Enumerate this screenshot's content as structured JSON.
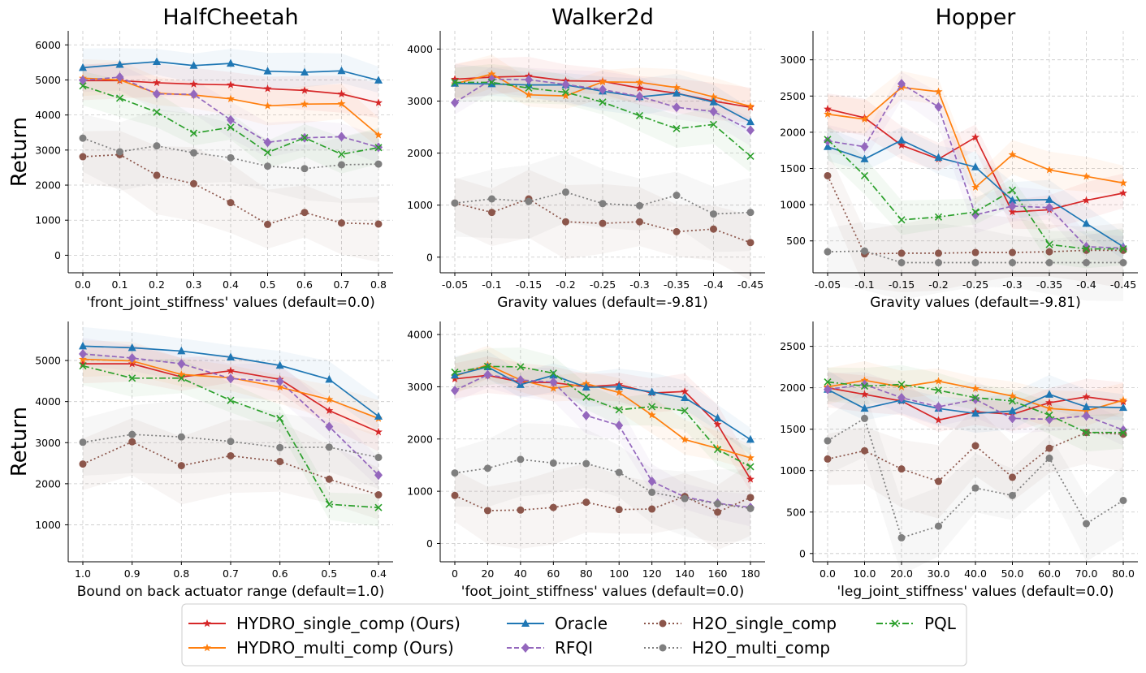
{
  "figure": {
    "legend_location": "bottom-center",
    "methods": [
      {
        "key": "hs",
        "label": "HYDRO_single_comp (Ours)",
        "color": "#d62728",
        "marker": "star",
        "dash": "solid"
      },
      {
        "key": "hm",
        "label": "HYDRO_multi_comp (Ours)",
        "color": "#ff7f0e",
        "marker": "star",
        "dash": "solid"
      },
      {
        "key": "or",
        "label": "Oracle",
        "color": "#1f77b4",
        "marker": "triangle",
        "dash": "solid"
      },
      {
        "key": "rf",
        "label": "RFQI",
        "color": "#9467bd",
        "marker": "diamond",
        "dash": "dashed"
      },
      {
        "key": "hss",
        "label": "H2O_single_comp",
        "color": "#8c564b",
        "marker": "circle",
        "dash": "dotted"
      },
      {
        "key": "hms",
        "label": "H2O_multi_comp",
        "color": "#7f7f7f",
        "marker": "circle",
        "dash": "dotted"
      },
      {
        "key": "pq",
        "label": "PQL",
        "color": "#2ca02c",
        "marker": "x",
        "dash": "dashdot"
      }
    ]
  },
  "chart_data": [
    {
      "type": "line",
      "title": "HalfCheetah",
      "ylabel": "Return",
      "xlabel": "'front_joint_stiffness' values (default=0.0)",
      "categories": [
        "0.0",
        "0.1",
        "0.2",
        "0.3",
        "0.4",
        "0.5",
        "0.6",
        "0.7",
        "0.8"
      ],
      "ylim": [
        -500,
        6400
      ],
      "yticks": [
        0,
        1000,
        2000,
        3000,
        4000,
        5000,
        6000
      ],
      "series": [
        {
          "key": "hs",
          "name": "HYDRO_single_comp (Ours)",
          "values": [
            4980,
            4980,
            4920,
            4880,
            4860,
            4750,
            4700,
            4600,
            4350
          ]
        },
        {
          "key": "hm",
          "name": "HYDRO_multi_comp (Ours)",
          "values": [
            5050,
            5000,
            4620,
            4570,
            4460,
            4260,
            4310,
            4320,
            3430
          ]
        },
        {
          "key": "or",
          "name": "Oracle",
          "values": [
            5350,
            5440,
            5520,
            5410,
            5470,
            5250,
            5220,
            5260,
            4990
          ]
        },
        {
          "key": "rf",
          "name": "RFQI",
          "values": [
            4990,
            5080,
            4600,
            4590,
            3860,
            3220,
            3350,
            3380,
            3080
          ]
        },
        {
          "key": "hss",
          "name": "H2O_single_comp",
          "values": [
            2810,
            2870,
            2280,
            2040,
            1500,
            880,
            1220,
            920,
            890
          ]
        },
        {
          "key": "hms",
          "name": "H2O_multi_comp",
          "values": [
            3340,
            2950,
            3120,
            2920,
            2780,
            2540,
            2470,
            2580,
            2600
          ]
        },
        {
          "key": "pq",
          "name": "PQL",
          "values": [
            4830,
            4480,
            4080,
            3480,
            3650,
            2930,
            3350,
            2880,
            3070
          ]
        }
      ]
    },
    {
      "type": "line",
      "title": "Walker2d",
      "ylabel": "",
      "xlabel": "Gravity values (default=-9.81)",
      "categories": [
        "-0.05",
        "-0.1",
        "-0.15",
        "-0.2",
        "-0.25",
        "-0.3",
        "-0.35",
        "-0.4",
        "-0.45"
      ],
      "ylim": [
        -300,
        4350
      ],
      "yticks": [
        0,
        1000,
        2000,
        3000,
        4000
      ],
      "series": [
        {
          "key": "hs",
          "name": "HYDRO_single_comp (Ours)",
          "values": [
            3420,
            3460,
            3480,
            3390,
            3380,
            3250,
            3150,
            3000,
            2880
          ]
        },
        {
          "key": "hm",
          "name": "HYDRO_multi_comp (Ours)",
          "values": [
            3330,
            3520,
            3120,
            3100,
            3370,
            3360,
            3260,
            3080,
            2900
          ]
        },
        {
          "key": "or",
          "name": "Oracle",
          "values": [
            3340,
            3330,
            3310,
            3310,
            3190,
            3080,
            3150,
            2980,
            2600
          ]
        },
        {
          "key": "rf",
          "name": "RFQI",
          "values": [
            2970,
            3420,
            3410,
            3320,
            3220,
            3090,
            2880,
            2800,
            2440
          ]
        },
        {
          "key": "hss",
          "name": "H2O_single_comp",
          "values": [
            1040,
            860,
            1120,
            680,
            650,
            680,
            490,
            540,
            280
          ]
        },
        {
          "key": "hms",
          "name": "H2O_multi_comp",
          "values": [
            1040,
            1120,
            1070,
            1250,
            1030,
            990,
            1190,
            830,
            860
          ]
        },
        {
          "key": "pq",
          "name": "PQL",
          "values": [
            3360,
            3360,
            3250,
            3170,
            2980,
            2720,
            2470,
            2550,
            1940
          ]
        }
      ]
    },
    {
      "type": "line",
      "title": "Hopper",
      "ylabel": "",
      "xlabel": "Gravity values (default=-9.81)",
      "categories": [
        "-0.05",
        "-0.1",
        "-0.15",
        "-0.2",
        "-0.25",
        "-0.3",
        "-0.35",
        "-0.4",
        "-0.45"
      ],
      "ylim": [
        60,
        3400
      ],
      "yticks": [
        500,
        1000,
        1500,
        2000,
        2500,
        3000
      ],
      "series": [
        {
          "key": "hs",
          "name": "HYDRO_single_comp (Ours)",
          "values": [
            2320,
            2200,
            1820,
            1630,
            1930,
            900,
            930,
            1060,
            1160
          ]
        },
        {
          "key": "hm",
          "name": "HYDRO_multi_comp (Ours)",
          "values": [
            2250,
            2180,
            2620,
            2560,
            1240,
            1690,
            1480,
            1390,
            1300
          ]
        },
        {
          "key": "or",
          "name": "Oracle",
          "values": [
            1800,
            1630,
            1890,
            1650,
            1520,
            1060,
            1070,
            740,
            420
          ]
        },
        {
          "key": "rf",
          "name": "RFQI",
          "values": [
            1880,
            1800,
            2670,
            2350,
            860,
            980,
            960,
            420,
            400
          ]
        },
        {
          "key": "hss",
          "name": "H2O_single_comp",
          "values": [
            1400,
            320,
            330,
            330,
            340,
            340,
            350,
            370,
            370
          ]
        },
        {
          "key": "hms",
          "name": "H2O_multi_comp",
          "values": [
            350,
            360,
            200,
            200,
            200,
            200,
            200,
            200,
            200
          ]
        },
        {
          "key": "pq",
          "name": "PQL",
          "values": [
            1900,
            1400,
            790,
            830,
            900,
            1200,
            450,
            390,
            390
          ]
        }
      ]
    },
    {
      "type": "line",
      "title": "",
      "ylabel": "Return",
      "xlabel": "Bound on back actuator range (default=1.0)",
      "categories": [
        "1.0",
        "0.9",
        "0.8",
        "0.7",
        "0.6",
        "0.5",
        "0.4"
      ],
      "ylim": [
        100,
        5950
      ],
      "yticks": [
        1000,
        2000,
        3000,
        4000,
        5000
      ],
      "series": [
        {
          "key": "hs",
          "name": "HYDRO_single_comp (Ours)",
          "values": [
            4920,
            4920,
            4600,
            4750,
            4540,
            3780,
            3260
          ]
        },
        {
          "key": "hm",
          "name": "HYDRO_multi_comp (Ours)",
          "values": [
            5030,
            4990,
            4660,
            4580,
            4350,
            4050,
            3590
          ]
        },
        {
          "key": "or",
          "name": "Oracle",
          "values": [
            5350,
            5310,
            5230,
            5080,
            4880,
            4540,
            3640
          ]
        },
        {
          "key": "rf",
          "name": "RFQI",
          "values": [
            5160,
            5060,
            4920,
            4560,
            4490,
            3390,
            2210
          ]
        },
        {
          "key": "hss",
          "name": "H2O_single_comp",
          "values": [
            2480,
            3020,
            2440,
            2680,
            2540,
            2110,
            1730
          ]
        },
        {
          "key": "hms",
          "name": "H2O_multi_comp",
          "values": [
            3010,
            3200,
            3140,
            3030,
            2880,
            2890,
            2640
          ]
        },
        {
          "key": "pq",
          "name": "PQL",
          "values": [
            4870,
            4570,
            4570,
            4030,
            3590,
            1500,
            1420
          ]
        }
      ]
    },
    {
      "type": "line",
      "title": "",
      "ylabel": "",
      "xlabel": "'foot_joint_stiffness' values (default=0.0)",
      "categories": [
        "0",
        "20",
        "40",
        "60",
        "80",
        "100",
        "120",
        "140",
        "160",
        "180"
      ],
      "ylim": [
        -350,
        4250
      ],
      "yticks": [
        0,
        1000,
        2000,
        3000,
        4000
      ],
      "series": [
        {
          "key": "hs",
          "name": "HYDRO_single_comp (Ours)",
          "values": [
            3150,
            3220,
            3090,
            3080,
            3000,
            3040,
            2880,
            2910,
            2280,
            1230
          ]
        },
        {
          "key": "hm",
          "name": "HYDRO_multi_comp (Ours)",
          "values": [
            3200,
            3420,
            3130,
            2970,
            3060,
            2890,
            2460,
            1990,
            1820,
            1640
          ]
        },
        {
          "key": "or",
          "name": "Oracle",
          "values": [
            3220,
            3380,
            3040,
            3220,
            2990,
            3000,
            2900,
            2790,
            2400,
            1990
          ]
        },
        {
          "key": "rf",
          "name": "RFQI",
          "values": [
            2930,
            3230,
            3130,
            3090,
            2450,
            2260,
            1190,
            890,
            770,
            690
          ]
        },
        {
          "key": "hss",
          "name": "H2O_single_comp",
          "values": [
            920,
            630,
            640,
            690,
            790,
            650,
            660,
            900,
            600,
            880
          ]
        },
        {
          "key": "hms",
          "name": "H2O_multi_comp",
          "values": [
            1350,
            1440,
            1610,
            1540,
            1530,
            1360,
            980,
            860,
            760,
            670
          ]
        },
        {
          "key": "pq",
          "name": "PQL",
          "values": [
            3280,
            3390,
            3380,
            3260,
            2800,
            2560,
            2620,
            2540,
            1800,
            1470
          ]
        }
      ]
    },
    {
      "type": "line",
      "title": "",
      "ylabel": "",
      "xlabel": "'leg_joint_stiffness' values (default=0.0)",
      "categories": [
        "0.0",
        "10.0",
        "20.0",
        "30.0",
        "40.0",
        "50.0",
        "60.0",
        "70.0",
        "80.0"
      ],
      "ylim": [
        -100,
        2800
      ],
      "yticks": [
        0,
        500,
        1000,
        1500,
        2000,
        2500
      ],
      "series": [
        {
          "key": "hs",
          "name": "HYDRO_single_comp (Ours)",
          "values": [
            2000,
            1920,
            1840,
            1610,
            1710,
            1680,
            1820,
            1890,
            1830
          ]
        },
        {
          "key": "hm",
          "name": "HYDRO_multi_comp (Ours)",
          "values": [
            2010,
            2090,
            2010,
            2080,
            1990,
            1900,
            1750,
            1720,
            1850
          ]
        },
        {
          "key": "or",
          "name": "Oracle",
          "values": [
            1980,
            1750,
            1850,
            1750,
            1690,
            1720,
            1920,
            1770,
            1760
          ]
        },
        {
          "key": "rf",
          "name": "RFQI",
          "values": [
            1980,
            2040,
            1880,
            1770,
            1860,
            1630,
            1620,
            1660,
            1490
          ]
        },
        {
          "key": "hss",
          "name": "H2O_single_comp",
          "values": [
            1140,
            1240,
            1020,
            870,
            1300,
            920,
            1270,
            1460,
            1440
          ]
        },
        {
          "key": "hms",
          "name": "H2O_multi_comp",
          "values": [
            1360,
            1630,
            190,
            330,
            790,
            700,
            1150,
            360,
            640
          ]
        },
        {
          "key": "pq",
          "name": "PQL",
          "values": [
            2070,
            2020,
            2040,
            1970,
            1880,
            1840,
            1670,
            1460,
            1460
          ]
        }
      ]
    }
  ]
}
